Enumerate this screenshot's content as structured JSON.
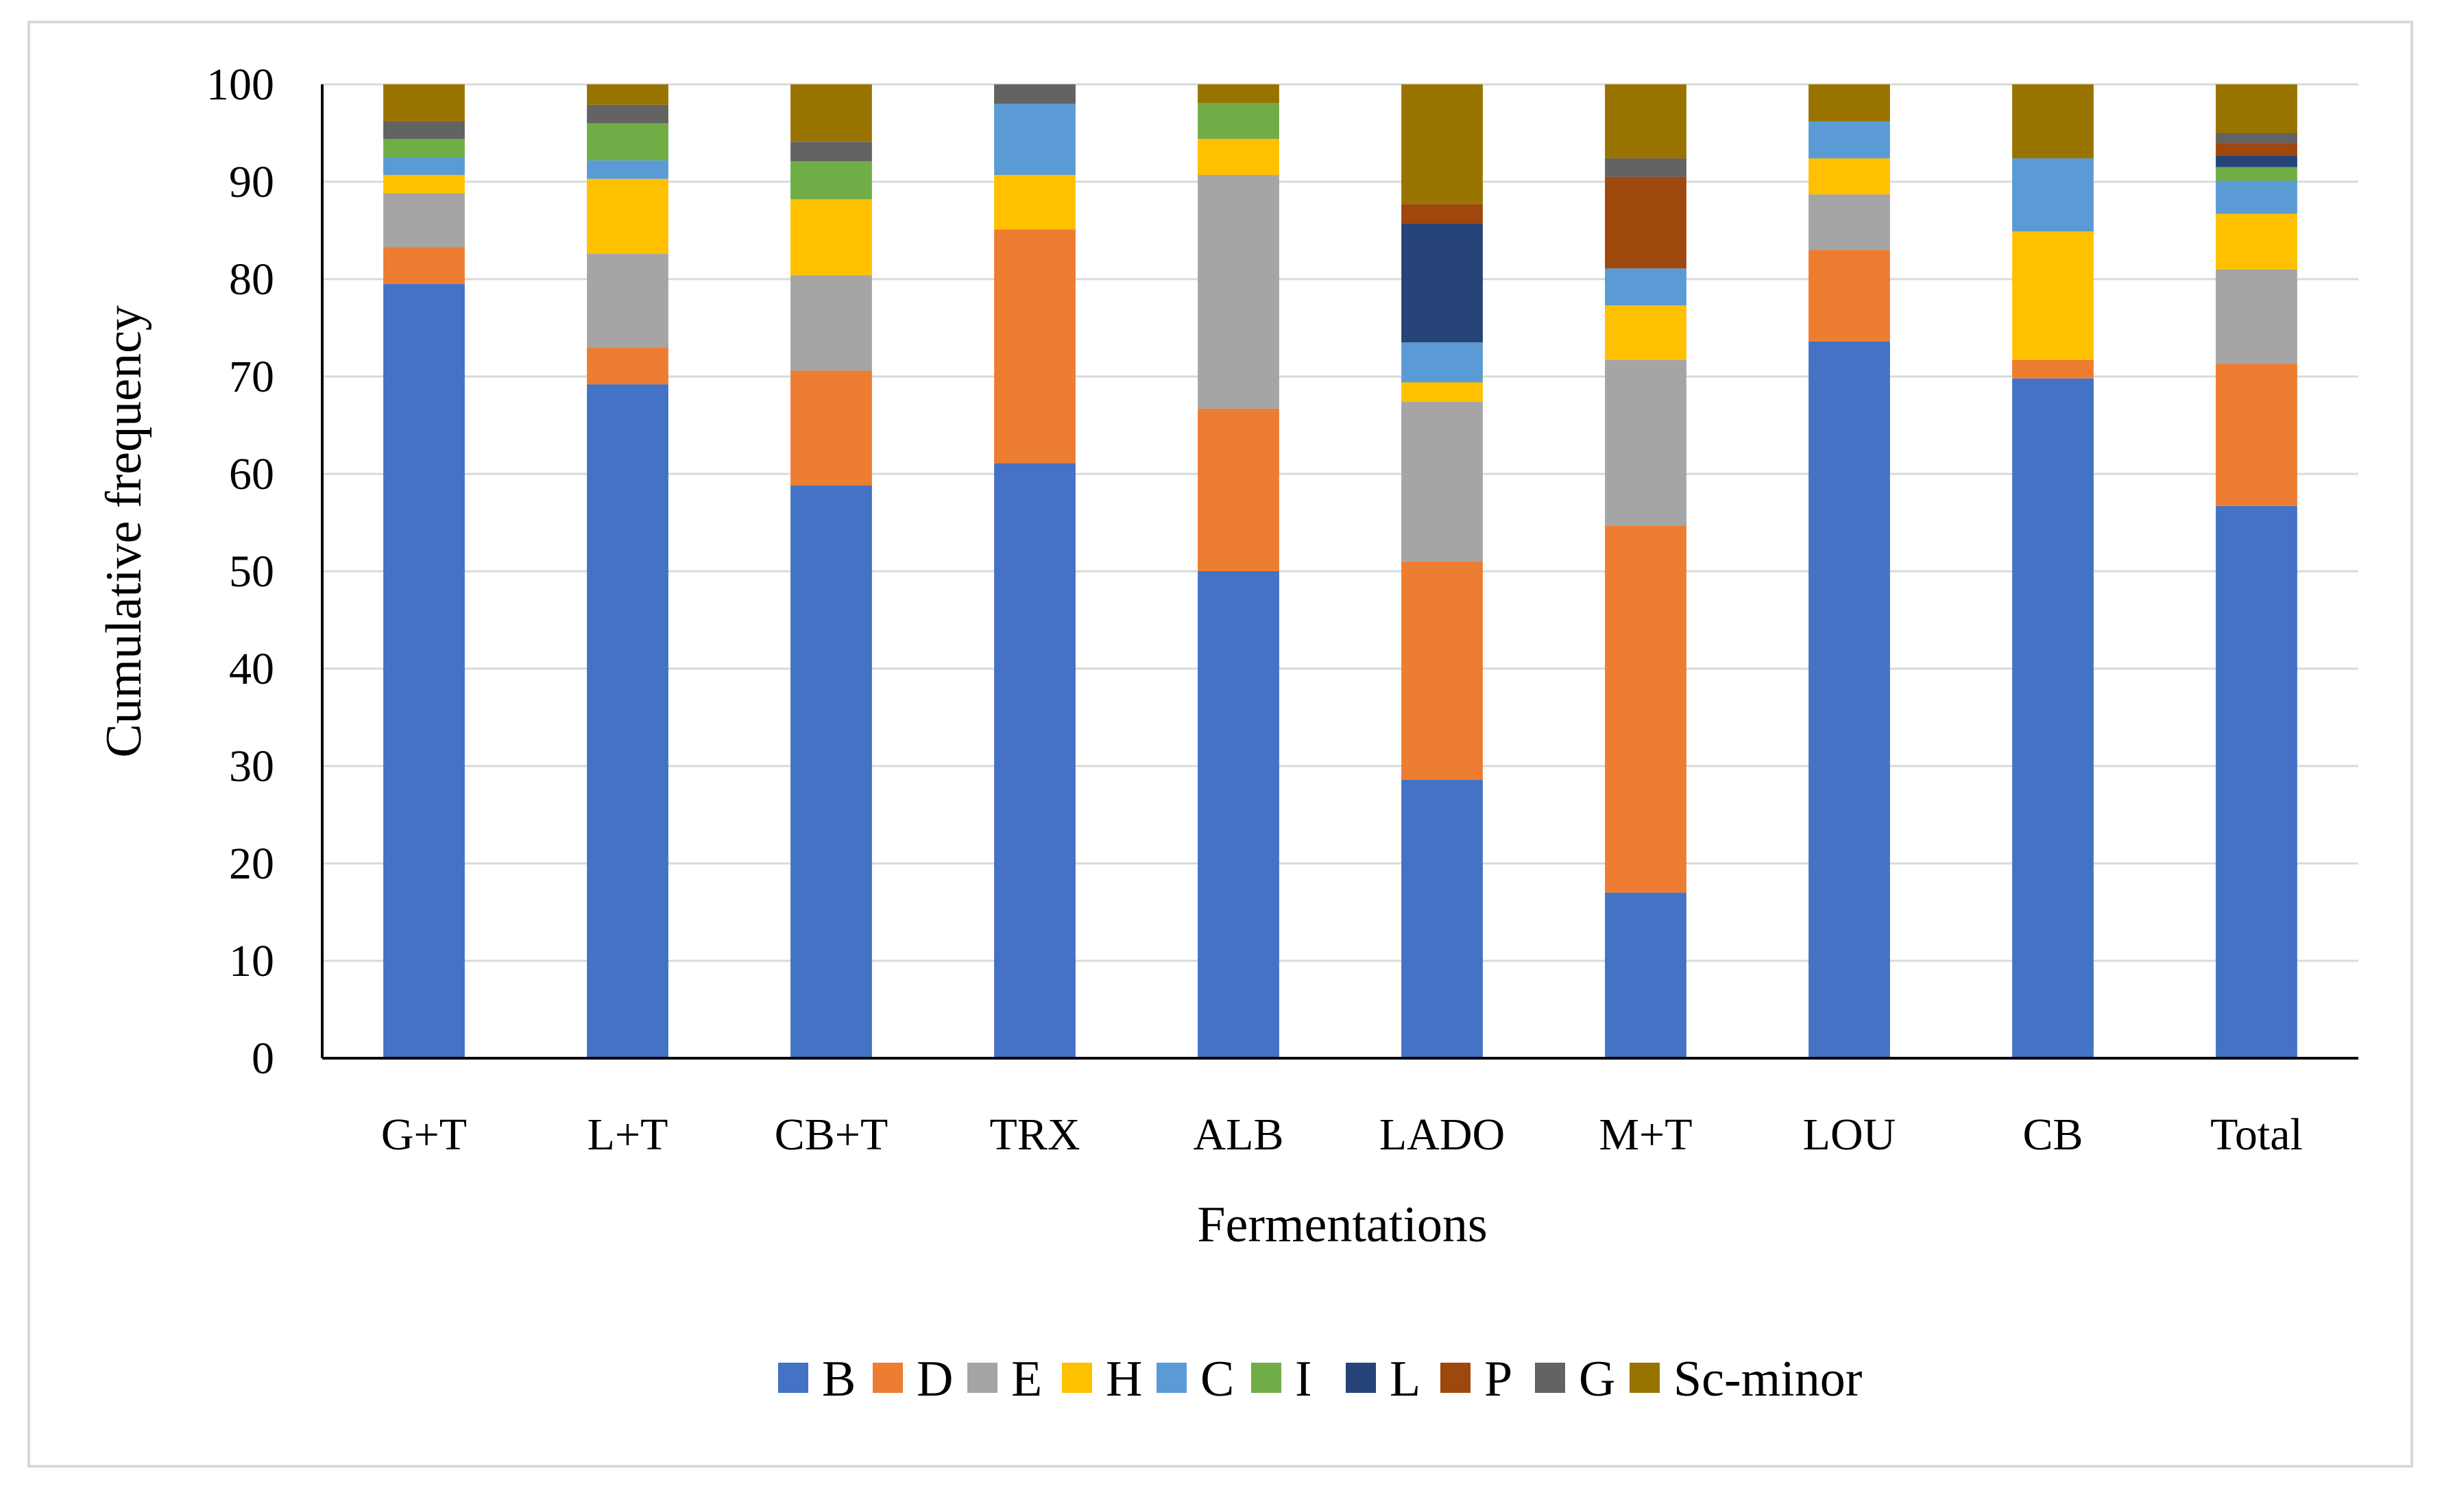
{
  "chart_data": {
    "type": "bar",
    "stacked": true,
    "xlabel": "Fermentations",
    "ylabel": "Cumulative frequency",
    "ylim": [
      0,
      100
    ],
    "yticks": [
      0,
      10,
      20,
      30,
      40,
      50,
      60,
      70,
      80,
      90,
      100
    ],
    "grid": true,
    "legend_position": "bottom",
    "categories": [
      "G+T",
      "L+T",
      "CB+T",
      "TRX",
      "ALB",
      "LADO",
      "M+T",
      "LOU",
      "CB",
      "Total"
    ],
    "series": [
      {
        "name": "B",
        "color": "#4472C4",
        "values": [
          79.5,
          69.2,
          58.8,
          61.1,
          50.0,
          28.6,
          17.0,
          73.6,
          69.8,
          56.7
        ]
      },
      {
        "name": "D",
        "color": "#ED7D31",
        "values": [
          3.8,
          3.8,
          11.8,
          24.0,
          16.7,
          22.4,
          37.7,
          9.4,
          1.9,
          14.6
        ]
      },
      {
        "name": "E",
        "color": "#A5A5A5",
        "values": [
          5.5,
          9.6,
          9.8,
          0.0,
          24.0,
          16.4,
          17.0,
          5.7,
          0.0,
          9.7
        ]
      },
      {
        "name": "H",
        "color": "#FFC000",
        "values": [
          1.9,
          7.7,
          7.8,
          5.6,
          3.7,
          2.0,
          5.6,
          3.7,
          13.2,
          5.7
        ]
      },
      {
        "name": "C",
        "color": "#5B9BD5",
        "values": [
          1.8,
          1.9,
          0.0,
          7.3,
          0.0,
          4.1,
          3.8,
          3.8,
          7.5,
          3.4
        ]
      },
      {
        "name": "I",
        "color": "#70AD47",
        "values": [
          1.9,
          3.8,
          3.9,
          0.0,
          3.7,
          0.0,
          0.0,
          0.0,
          0.0,
          1.4
        ]
      },
      {
        "name": "L",
        "color": "#264478",
        "values": [
          0.0,
          0.0,
          0.0,
          0.0,
          0.0,
          12.2,
          0.0,
          0.0,
          0.0,
          1.2
        ]
      },
      {
        "name": "P",
        "color": "#9E480E",
        "values": [
          0.0,
          0.0,
          0.0,
          0.0,
          0.0,
          2.0,
          9.4,
          0.0,
          0.0,
          1.3
        ]
      },
      {
        "name": "G",
        "color": "#636363",
        "values": [
          1.8,
          1.9,
          2.0,
          2.0,
          0.0,
          0.0,
          1.9,
          0.0,
          0.0,
          1.0
        ]
      },
      {
        "name": "Sc-minor",
        "color": "#997300",
        "values": [
          3.8,
          2.1,
          5.9,
          0.0,
          1.9,
          12.3,
          7.6,
          3.8,
          7.6,
          5.0
        ]
      }
    ]
  }
}
